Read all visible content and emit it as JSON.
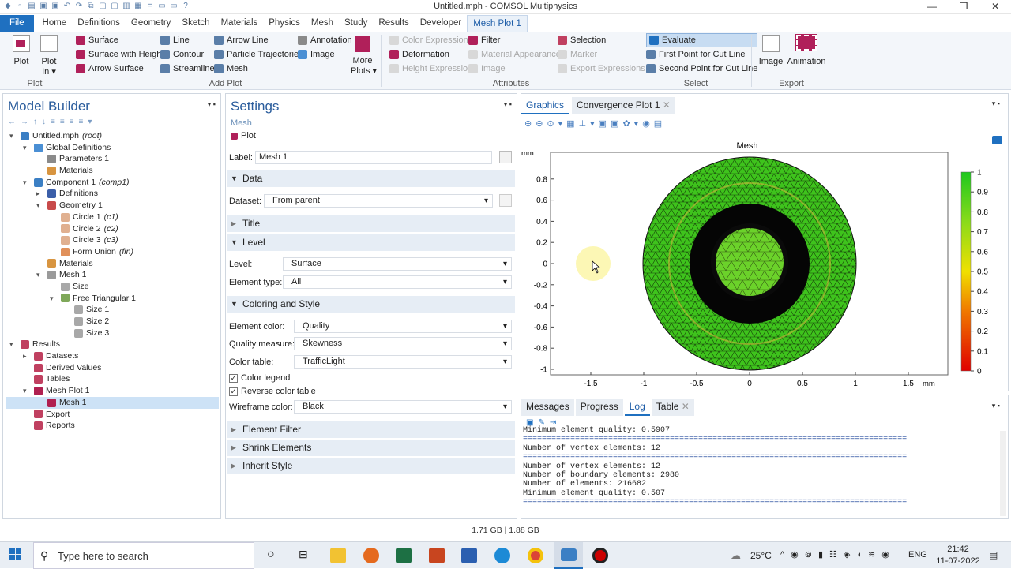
{
  "window": {
    "title": "Untitled.mph - COMSOL Multiphysics"
  },
  "ribbon_tabs": [
    "File",
    "Home",
    "Definitions",
    "Geometry",
    "Sketch",
    "Materials",
    "Physics",
    "Mesh",
    "Study",
    "Results",
    "Developer",
    "Mesh Plot 1"
  ],
  "ribbon": {
    "plot": "Plot",
    "plot_in": "Plot\nIn ▾",
    "group_plot": "Plot",
    "add_col1": [
      "Surface",
      "Surface with Height",
      "Arrow Surface"
    ],
    "add_col2": [
      "Line",
      "Contour",
      "Streamline"
    ],
    "add_col3": [
      "Arrow Line",
      "Particle Trajectories",
      "Mesh"
    ],
    "add_col4": [
      "Annotation",
      "Image"
    ],
    "more_plots": "More\nPlots ▾",
    "group_add": "Add Plot",
    "attr_col1": [
      "Color Expression",
      "Deformation",
      "Height Expression"
    ],
    "attr_col2": [
      "Filter",
      "Material Appearance",
      "Image"
    ],
    "attr_col3": [
      "Selection",
      "Marker",
      "Export Expressions"
    ],
    "group_attr": "Attributes",
    "sel_col": [
      "Evaluate",
      "First Point for Cut Line",
      "Second Point for Cut Line"
    ],
    "group_sel": "Select",
    "image": "Image",
    "animation": "Animation",
    "group_export": "Export"
  },
  "model_builder": {
    "title": "Model Builder",
    "tree": [
      {
        "label": "Untitled.mph",
        "suffix": "(root)",
        "depth": 0,
        "icon": "file-icon",
        "color": "#3b7fc4"
      },
      {
        "label": "Global Definitions",
        "depth": 1,
        "icon": "globe-icon",
        "color": "#4a8fd4"
      },
      {
        "label": "Parameters 1",
        "depth": 2,
        "icon": "parameters-icon",
        "color": "#8a8a8a"
      },
      {
        "label": "Materials",
        "depth": 2,
        "icon": "materials-icon",
        "color": "#d89540"
      },
      {
        "label": "Component 1",
        "suffix": "(comp1)",
        "depth": 1,
        "icon": "component-icon",
        "color": "#3b7fc4"
      },
      {
        "label": "Definitions",
        "depth": 2,
        "icon": "definitions-icon",
        "color": "#3b5ea8"
      },
      {
        "label": "Geometry 1",
        "depth": 2,
        "icon": "geometry-icon",
        "color": "#c84a4a"
      },
      {
        "label": "Circle 1",
        "suffix": "(c1)",
        "depth": 3,
        "icon": "circle-icon",
        "color": "#e0b090"
      },
      {
        "label": "Circle 2",
        "suffix": "(c2)",
        "depth": 3,
        "icon": "circle-icon",
        "color": "#e0b090"
      },
      {
        "label": "Circle 3",
        "suffix": "(c3)",
        "depth": 3,
        "icon": "circle-icon",
        "color": "#e0b090"
      },
      {
        "label": "Form Union",
        "suffix": "(fin)",
        "depth": 3,
        "icon": "form-union-icon",
        "color": "#e0905a"
      },
      {
        "label": "Materials",
        "depth": 2,
        "icon": "materials-icon",
        "color": "#d89540"
      },
      {
        "label": "Mesh 1",
        "depth": 2,
        "icon": "mesh-icon",
        "color": "#9a9a9a"
      },
      {
        "label": "Size",
        "depth": 3,
        "icon": "size-icon",
        "color": "#a8a8a8"
      },
      {
        "label": "Free Triangular 1",
        "depth": 3,
        "icon": "free-triangular-icon",
        "color": "#7fa85a"
      },
      {
        "label": "Size 1",
        "depth": 4,
        "icon": "size-icon",
        "color": "#a8a8a8"
      },
      {
        "label": "Size 2",
        "depth": 4,
        "icon": "size-icon",
        "color": "#a8a8a8"
      },
      {
        "label": "Size 3",
        "depth": 4,
        "icon": "size-icon",
        "color": "#a8a8a8"
      },
      {
        "label": "Results",
        "depth": 0,
        "icon": "results-icon",
        "color": "#c04060"
      },
      {
        "label": "Datasets",
        "depth": 1,
        "icon": "datasets-icon",
        "color": "#c04060"
      },
      {
        "label": "Derived Values",
        "depth": 1,
        "icon": "derived-values-icon",
        "color": "#c04060"
      },
      {
        "label": "Tables",
        "depth": 1,
        "icon": "tables-icon",
        "color": "#c04060"
      },
      {
        "label": "Mesh Plot 1",
        "depth": 1,
        "icon": "mesh-plot-icon",
        "color": "#b02050"
      },
      {
        "label": "Mesh 1",
        "depth": 2,
        "icon": "mesh-icon",
        "color": "#b02050",
        "selected": true
      },
      {
        "label": "Export",
        "depth": 1,
        "icon": "export-icon",
        "color": "#c04060"
      },
      {
        "label": "Reports",
        "depth": 1,
        "icon": "reports-icon",
        "color": "#c04060"
      }
    ]
  },
  "settings": {
    "title": "Settings",
    "subtitle": "Mesh",
    "plot_label": "Plot",
    "label_lbl": "Label:",
    "label_value": "Mesh 1",
    "data_hdr": "Data",
    "dataset_lbl": "Dataset:",
    "dataset_value": "From parent",
    "title_hdr": "Title",
    "level_hdr": "Level",
    "level_lbl": "Level:",
    "level_value": "Surface",
    "elemtype_lbl": "Element type:",
    "elemtype_value": "All",
    "coloring_hdr": "Coloring and Style",
    "elemcolor_lbl": "Element color:",
    "elemcolor_value": "Quality",
    "qmeasure_lbl": "Quality measure:",
    "qmeasure_value": "Skewness",
    "ctable_lbl": "Color table:",
    "ctable_value": "TrafficLight",
    "color_legend": "Color legend",
    "reverse_color": "Reverse color table",
    "wire_lbl": "Wireframe color:",
    "wire_value": "Black",
    "filter_hdr": "Element Filter",
    "shrink_hdr": "Shrink Elements",
    "inherit_hdr": "Inherit Style"
  },
  "graphics": {
    "tabs": [
      "Graphics",
      "Convergence Plot 1"
    ],
    "plot_title": "Mesh",
    "unit": "mm",
    "y_ticks": [
      "0.8",
      "0.6",
      "0.4",
      "0.2",
      "0",
      "-0.2",
      "-0.4",
      "-0.6",
      "-0.8",
      "-1"
    ],
    "x_ticks": [
      "-1.5",
      "-1",
      "-0.5",
      "0",
      "0.5",
      "1",
      "1.5"
    ],
    "legend_ticks": [
      "1",
      "0.9",
      "0.8",
      "0.7",
      "0.6",
      "0.5",
      "0.4",
      "0.3",
      "0.2",
      "0.1",
      "0"
    ]
  },
  "log": {
    "tabs": [
      "Messages",
      "Progress",
      "Log",
      "Table"
    ],
    "lines": [
      "Minimum element quality: 0.5907",
      "=================================================================================",
      "Number of vertex elements: 12",
      "=================================================================================",
      "Number of vertex elements: 12",
      "Number of boundary elements: 2980",
      "Number of elements: 216682",
      "Minimum element quality: 0.507",
      "================================================================================="
    ]
  },
  "status": {
    "memory": "1.71 GB | 1.88 GB"
  },
  "taskbar": {
    "search": "Type here to search",
    "temp": "25°C",
    "lang": "ENG",
    "time": "21:42",
    "date": "11-07-2022"
  }
}
